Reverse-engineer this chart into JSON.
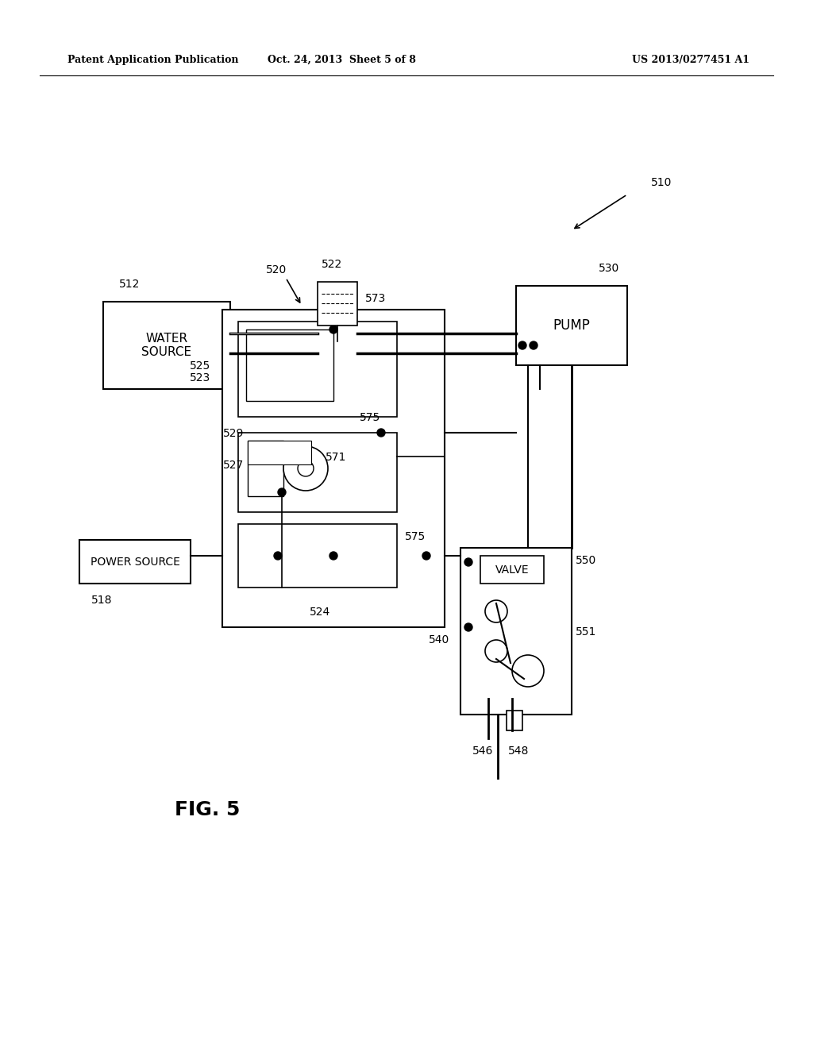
{
  "bg_color": "#ffffff",
  "header_left": "Patent Application Publication",
  "header_mid": "Oct. 24, 2013  Sheet 5 of 8",
  "header_right": "US 2013/0277451 A1",
  "fig_label": "FIG. 5",
  "label_510": "510",
  "label_512": "512",
  "label_518": "518",
  "label_520": "520",
  "label_522": "522",
  "label_523": "523",
  "label_524": "524",
  "label_525": "525",
  "label_527": "527",
  "label_529": "529",
  "label_530": "530",
  "label_540": "540",
  "label_546": "546",
  "label_548": "548",
  "label_550": "550",
  "label_551": "551",
  "label_571": "571",
  "label_573": "573",
  "label_575": "575",
  "text_water_source": "WATER\nSOURCE",
  "text_pump": "PUMP",
  "text_power_source": "POWER SOURCE",
  "text_valve": "VALVE"
}
